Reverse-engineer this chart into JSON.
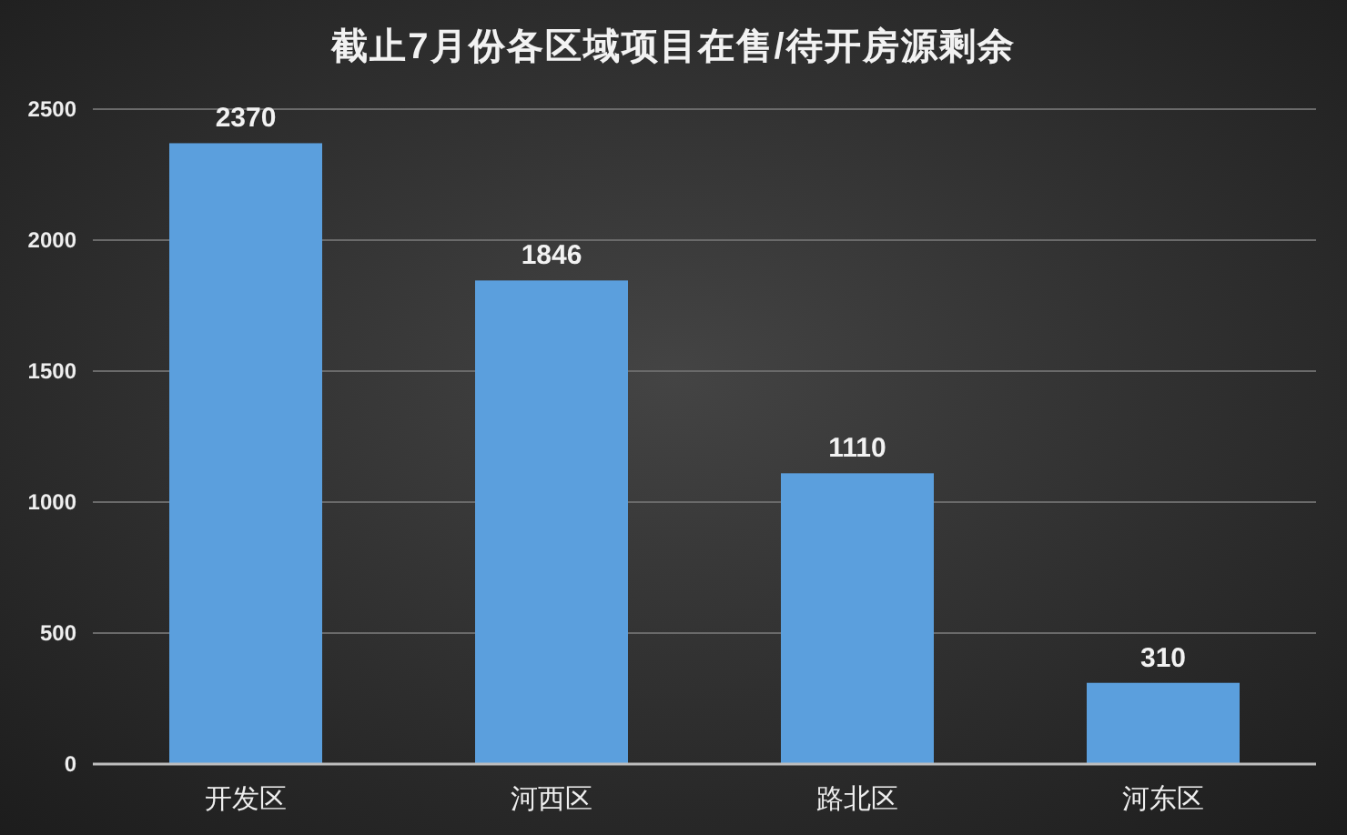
{
  "chart_data": {
    "type": "bar",
    "title": "截止7月份各区域项目在售/待开房源剩余",
    "categories": [
      "开发区",
      "河西区",
      "路北区",
      "河东区"
    ],
    "values": [
      2370,
      1846,
      1110,
      310
    ],
    "color": "#5b9fdd",
    "ylim": [
      0,
      2500
    ],
    "yticks": [
      0,
      500,
      1000,
      1500,
      2000,
      2500
    ],
    "grid": "y",
    "data_labels": true
  }
}
